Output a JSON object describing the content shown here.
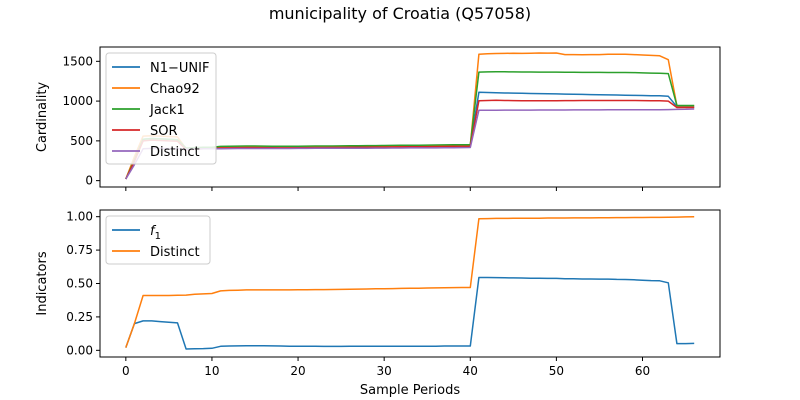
{
  "title": "municipality of Croatia (Q57058)",
  "chart_data": [
    {
      "type": "line",
      "ylabel": "Cardinality",
      "xlabel": "",
      "xlim": [
        -3,
        69
      ],
      "ylim": [
        -80,
        1680
      ],
      "xticks": [
        0,
        10,
        20,
        30,
        40,
        50,
        60
      ],
      "show_xtick_labels": false,
      "yticks": [
        0,
        500,
        1000,
        1500
      ],
      "ytick_labels": [
        "0",
        "500",
        "1000",
        "1500"
      ],
      "legend_position": "upper-left",
      "x": [
        0,
        1,
        2,
        3,
        4,
        5,
        6,
        7,
        8,
        9,
        10,
        11,
        12,
        13,
        14,
        15,
        16,
        17,
        18,
        19,
        20,
        21,
        22,
        23,
        24,
        25,
        26,
        27,
        28,
        29,
        30,
        31,
        32,
        33,
        34,
        35,
        36,
        37,
        38,
        39,
        40,
        41,
        42,
        43,
        44,
        45,
        46,
        47,
        48,
        49,
        50,
        51,
        52,
        53,
        54,
        55,
        56,
        57,
        58,
        59,
        60,
        61,
        62,
        63,
        64,
        65,
        66
      ],
      "series": [
        {
          "name": "N1−UNIF",
          "color": "#1f77b4",
          "values": [
            20,
            250,
            520,
            530,
            525,
            520,
            515,
            400,
            405,
            410,
            410,
            420,
            422,
            424,
            425,
            425,
            424,
            423,
            422,
            422,
            423,
            424,
            425,
            425,
            426,
            427,
            428,
            429,
            430,
            431,
            432,
            433,
            434,
            435,
            436,
            437,
            438,
            439,
            440,
            441,
            442,
            1110,
            1108,
            1105,
            1102,
            1100,
            1098,
            1096,
            1094,
            1092,
            1090,
            1088,
            1086,
            1084,
            1082,
            1080,
            1078,
            1076,
            1074,
            1072,
            1070,
            1068,
            1066,
            1060,
            930,
            925,
            925
          ]
        },
        {
          "name": "Chao92",
          "color": "#ff7f0e",
          "values": [
            20,
            300,
            560,
            565,
            560,
            555,
            550,
            400,
            405,
            410,
            410,
            420,
            422,
            424,
            425,
            425,
            424,
            423,
            422,
            422,
            423,
            424,
            425,
            425,
            426,
            427,
            428,
            429,
            430,
            431,
            432,
            433,
            434,
            435,
            436,
            437,
            438,
            439,
            440,
            441,
            442,
            1590,
            1595,
            1598,
            1600,
            1602,
            1600,
            1602,
            1604,
            1603,
            1605,
            1585,
            1585,
            1583,
            1584,
            1585,
            1590,
            1590,
            1588,
            1585,
            1580,
            1575,
            1570,
            1520,
            940,
            940,
            940
          ]
        },
        {
          "name": "Jack1",
          "color": "#2ca02c",
          "values": [
            20,
            260,
            520,
            530,
            525,
            520,
            515,
            410,
            415,
            420,
            420,
            430,
            432,
            434,
            435,
            435,
            434,
            433,
            432,
            432,
            433,
            434,
            435,
            435,
            436,
            437,
            438,
            439,
            440,
            441,
            442,
            443,
            444,
            445,
            446,
            447,
            448,
            449,
            450,
            451,
            452,
            1365,
            1367,
            1368,
            1368,
            1367,
            1366,
            1366,
            1365,
            1365,
            1365,
            1362,
            1362,
            1361,
            1361,
            1361,
            1360,
            1360,
            1359,
            1358,
            1355,
            1352,
            1350,
            1345,
            945,
            945,
            945
          ]
        },
        {
          "name": "SOR",
          "color": "#d62728",
          "values": [
            20,
            240,
            500,
            510,
            505,
            500,
            495,
            390,
            395,
            400,
            400,
            410,
            412,
            414,
            415,
            415,
            414,
            413,
            412,
            412,
            413,
            414,
            415,
            415,
            416,
            417,
            418,
            419,
            420,
            421,
            422,
            423,
            424,
            425,
            426,
            427,
            428,
            429,
            430,
            431,
            432,
            1005,
            1008,
            1010,
            1008,
            1006,
            1005,
            1004,
            1004,
            1004,
            1005,
            1006,
            1006,
            1007,
            1007,
            1008,
            1008,
            1008,
            1007,
            1007,
            1006,
            1005,
            1005,
            1000,
            920,
            920,
            920
          ]
        },
        {
          "name": "Distinct",
          "color": "#9467bd",
          "values": [
            20,
            200,
            400,
            405,
            404,
            403,
            402,
            395,
            398,
            400,
            400,
            402,
            403,
            404,
            404,
            404,
            404,
            404,
            404,
            404,
            405,
            405,
            406,
            406,
            406,
            407,
            407,
            408,
            408,
            409,
            409,
            410,
            410,
            411,
            411,
            412,
            412,
            413,
            414,
            415,
            416,
            885,
            886,
            886,
            887,
            887,
            887,
            887,
            888,
            888,
            888,
            888,
            889,
            889,
            889,
            889,
            890,
            890,
            890,
            890,
            891,
            891,
            892,
            893,
            895,
            897,
            900
          ]
        }
      ]
    },
    {
      "type": "line",
      "ylabel": "Indicators",
      "xlabel": "Sample Periods",
      "xlim": [
        -3,
        69
      ],
      "ylim": [
        -0.05,
        1.05
      ],
      "xticks": [
        0,
        10,
        20,
        30,
        40,
        50,
        60
      ],
      "xtick_labels": [
        "0",
        "10",
        "20",
        "30",
        "40",
        "50",
        "60"
      ],
      "yticks": [
        0,
        0.25,
        0.5,
        0.75,
        1
      ],
      "ytick_labels": [
        "0.00",
        "0.25",
        "0.50",
        "0.75",
        "1.00"
      ],
      "legend_position": "upper-left",
      "x": [
        0,
        1,
        2,
        3,
        4,
        5,
        6,
        7,
        8,
        9,
        10,
        11,
        12,
        13,
        14,
        15,
        16,
        17,
        18,
        19,
        20,
        21,
        22,
        23,
        24,
        25,
        26,
        27,
        28,
        29,
        30,
        31,
        32,
        33,
        34,
        35,
        36,
        37,
        38,
        39,
        40,
        41,
        42,
        43,
        44,
        45,
        46,
        47,
        48,
        49,
        50,
        51,
        52,
        53,
        54,
        55,
        56,
        57,
        58,
        59,
        60,
        61,
        62,
        63,
        64,
        65,
        66
      ],
      "series": [
        {
          "name": "f",
          "name_sub": "1",
          "color": "#1f77b4",
          "values": [
            0.02,
            0.2,
            0.22,
            0.22,
            0.215,
            0.21,
            0.205,
            0.01,
            0.012,
            0.013,
            0.015,
            0.03,
            0.032,
            0.033,
            0.034,
            0.034,
            0.034,
            0.033,
            0.032,
            0.03,
            0.03,
            0.03,
            0.03,
            0.029,
            0.029,
            0.029,
            0.03,
            0.03,
            0.03,
            0.03,
            0.03,
            0.03,
            0.031,
            0.031,
            0.031,
            0.031,
            0.031,
            0.032,
            0.032,
            0.032,
            0.032,
            0.545,
            0.545,
            0.544,
            0.543,
            0.542,
            0.541,
            0.54,
            0.539,
            0.538,
            0.538,
            0.535,
            0.535,
            0.534,
            0.534,
            0.533,
            0.533,
            0.531,
            0.53,
            0.528,
            0.525,
            0.522,
            0.52,
            0.505,
            0.05,
            0.05,
            0.052
          ]
        },
        {
          "name": "Distinct",
          "color": "#ff7f0e",
          "values": [
            0.02,
            0.2,
            0.41,
            0.41,
            0.41,
            0.41,
            0.412,
            0.413,
            0.42,
            0.422,
            0.425,
            0.445,
            0.448,
            0.45,
            0.452,
            0.452,
            0.452,
            0.452,
            0.452,
            0.452,
            0.453,
            0.453,
            0.454,
            0.454,
            0.455,
            0.456,
            0.457,
            0.458,
            0.459,
            0.46,
            0.461,
            0.462,
            0.463,
            0.464,
            0.465,
            0.466,
            0.467,
            0.468,
            0.469,
            0.47,
            0.47,
            0.985,
            0.986,
            0.987,
            0.987,
            0.988,
            0.988,
            0.989,
            0.989,
            0.99,
            0.99,
            0.99,
            0.991,
            0.991,
            0.991,
            0.992,
            0.992,
            0.993,
            0.993,
            0.994,
            0.994,
            0.995,
            0.995,
            0.996,
            0.997,
            0.998,
            0.999
          ]
        }
      ]
    }
  ]
}
